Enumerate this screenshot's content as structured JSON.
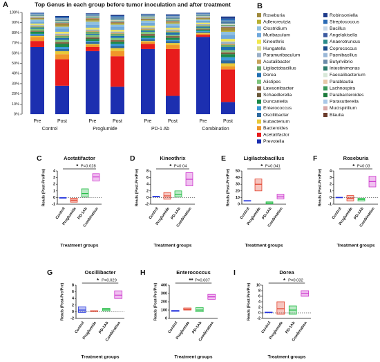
{
  "chart_data": [
    {
      "type": "bar",
      "panel_label": "A",
      "legend_panel_label": "B",
      "title": "Top Genus in each group before tumor inoculation and after treatment",
      "categories": [
        "Pre",
        "Post",
        "Pre",
        "Post",
        "Pre",
        "Post",
        "Pre",
        "Post"
      ],
      "groups": [
        "Control",
        "Proglumide",
        "PD-1 Ab",
        "Combination"
      ],
      "ylim": [
        0,
        100
      ],
      "yticks": [
        {
          "value": 0,
          "label": "0%"
        },
        {
          "value": 10,
          "label": "10%"
        },
        {
          "value": 20,
          "label": "20%"
        },
        {
          "value": 30,
          "label": "30%"
        },
        {
          "value": 40,
          "label": "40%"
        },
        {
          "value": 50,
          "label": "50%"
        },
        {
          "value": 60,
          "label": "60%"
        },
        {
          "value": 70,
          "label": "70%"
        },
        {
          "value": 80,
          "label": "80%"
        },
        {
          "value": 90,
          "label": "90%"
        },
        {
          "value": 100,
          "label": "100%"
        }
      ],
      "series": [
        {
          "name": "Roseburia",
          "color": "#a08a3c",
          "values": [
            1,
            2,
            2,
            1,
            1,
            1,
            1,
            3
          ]
        },
        {
          "name": "Adlercreutzia",
          "color": "#b8b030",
          "values": [
            0.5,
            1,
            1,
            1,
            0.5,
            1,
            0.5,
            1
          ]
        },
        {
          "name": "Clostridium",
          "color": "#8fc0e0",
          "values": [
            2,
            2,
            3,
            2,
            2,
            2,
            1,
            3
          ]
        },
        {
          "name": "Muribaculum",
          "color": "#6fa8dc",
          "values": [
            2,
            3,
            3,
            3,
            3,
            2,
            2,
            4
          ]
        },
        {
          "name": "Kineothrix",
          "color": "#f2e84b",
          "values": [
            1,
            1,
            1,
            1,
            1,
            1,
            1,
            2
          ]
        },
        {
          "name": "Hungatella",
          "color": "#d9d98c",
          "values": [
            0.5,
            1,
            1,
            1,
            1,
            1,
            0.5,
            1
          ]
        },
        {
          "name": "Paramuribaculum",
          "color": "#9ab0c8",
          "values": [
            1,
            1,
            1,
            1,
            1,
            1,
            1,
            2
          ]
        },
        {
          "name": "Acutalibacter",
          "color": "#c7a25a",
          "values": [
            0.5,
            1,
            1,
            1,
            1,
            1,
            0.5,
            1
          ]
        },
        {
          "name": "Ligilactobacillus",
          "color": "#6aa86a",
          "values": [
            1,
            2,
            2,
            2,
            1,
            1,
            1,
            2
          ]
        },
        {
          "name": "Dorea",
          "color": "#1f6fb2",
          "values": [
            1,
            2,
            1,
            2,
            1,
            2,
            1,
            3
          ]
        },
        {
          "name": "Alistipes",
          "color": "#7cc47c",
          "values": [
            2,
            2,
            2,
            2,
            2,
            1,
            1,
            2
          ]
        },
        {
          "name": "Lawsonibacter",
          "color": "#8a6a4a",
          "values": [
            0.5,
            1,
            1,
            1,
            1,
            1,
            0.5,
            1
          ]
        },
        {
          "name": "Schaedlerella",
          "color": "#6b5a3a",
          "values": [
            0.5,
            1,
            1,
            1,
            1,
            1,
            0.5,
            1
          ]
        },
        {
          "name": "Duncaniella",
          "color": "#1b8a4a",
          "values": [
            2,
            3,
            2,
            2,
            2,
            2,
            1,
            3
          ]
        },
        {
          "name": "Enterococcus",
          "color": "#3a9ad9",
          "values": [
            1,
            2,
            1,
            2,
            1,
            1,
            1,
            3
          ]
        },
        {
          "name": "Oscillibacter",
          "color": "#2e6aa0",
          "values": [
            1,
            2,
            2,
            2,
            2,
            2,
            1,
            3
          ]
        },
        {
          "name": "Eubacterium",
          "color": "#e8c93a",
          "values": [
            1,
            3,
            1,
            3,
            1,
            2,
            1,
            3
          ]
        },
        {
          "name": "Bacteroides",
          "color": "#f0962a",
          "values": [
            4,
            5,
            2,
            5,
            2,
            4,
            1,
            3
          ]
        },
        {
          "name": "Acetatifactor",
          "color": "#e81c1c",
          "values": [
            6,
            26,
            4,
            30,
            5,
            46,
            2,
            32
          ]
        },
        {
          "name": "Prevotella",
          "color": "#1c2fb0",
          "values": [
            66,
            28,
            62,
            27,
            64,
            18,
            76,
            12
          ]
        },
        {
          "name": "Robinsoniella",
          "color": "#1e3a8a",
          "values": [
            0.5,
            1,
            0.5,
            1,
            0.5,
            1,
            0.5,
            2
          ]
        },
        {
          "name": "Streptococcus",
          "color": "#2a6ab5",
          "values": [
            0.5,
            1,
            0.5,
            1,
            0.5,
            0.5,
            0.5,
            2
          ]
        },
        {
          "name": "Bacillus",
          "color": "#c8d8e8",
          "values": [
            0.3,
            0.4,
            0.3,
            0.4,
            0.3,
            0.4,
            0.3,
            0.5
          ]
        },
        {
          "name": "Angelakisella",
          "color": "#3c5aa0",
          "values": [
            0.3,
            0.4,
            0.3,
            0.4,
            0.3,
            0.4,
            0.3,
            0.5
          ]
        },
        {
          "name": "Anaerotruncus",
          "color": "#2a8a8a",
          "values": [
            0.3,
            0.4,
            0.3,
            0.4,
            0.3,
            0.4,
            0.3,
            0.5
          ]
        },
        {
          "name": "Coprococcus",
          "color": "#1a4a8a",
          "values": [
            0.3,
            0.4,
            0.3,
            0.4,
            0.3,
            0.4,
            0.3,
            0.5
          ]
        },
        {
          "name": "Paenibacillus",
          "color": "#9ab8d8",
          "values": [
            0.3,
            0.4,
            0.3,
            0.4,
            0.3,
            0.4,
            0.3,
            0.5
          ]
        },
        {
          "name": "Butyrivibrio",
          "color": "#6a8aa8",
          "values": [
            0.3,
            0.4,
            0.3,
            0.4,
            0.3,
            0.4,
            0.3,
            0.5
          ]
        },
        {
          "name": "Intestinimonas",
          "color": "#2a7a6a",
          "values": [
            0.3,
            0.4,
            0.3,
            0.4,
            0.3,
            0.4,
            0.3,
            0.5
          ]
        },
        {
          "name": "Faecalibacterium",
          "color": "#d8e8d8",
          "values": [
            0.3,
            0.4,
            0.3,
            0.4,
            0.3,
            0.4,
            0.3,
            0.5
          ]
        },
        {
          "name": "Parablautia",
          "color": "#e8c8a8",
          "values": [
            0.3,
            0.4,
            0.3,
            0.4,
            0.3,
            0.4,
            0.3,
            0.5
          ]
        },
        {
          "name": "Lachnospira",
          "color": "#3a9a5a",
          "values": [
            0.3,
            0.4,
            0.3,
            0.4,
            0.3,
            0.4,
            0.3,
            0.5
          ]
        },
        {
          "name": "Parabacteroides",
          "color": "#1a7a3a",
          "values": [
            0.3,
            0.4,
            0.3,
            0.4,
            0.3,
            0.4,
            0.3,
            0.5
          ]
        },
        {
          "name": "Parasutterella",
          "color": "#aac8e8",
          "values": [
            0.3,
            0.4,
            0.3,
            0.4,
            0.3,
            0.4,
            0.3,
            0.5
          ]
        },
        {
          "name": "Mucispirillum",
          "color": "#d8a8a8",
          "values": [
            0.3,
            0.4,
            0.3,
            0.4,
            0.3,
            0.4,
            0.3,
            0.5
          ]
        },
        {
          "name": "Blautia",
          "color": "#6a3a2a",
          "values": [
            0.3,
            0.4,
            0.3,
            0.4,
            0.3,
            0.4,
            0.3,
            0.5
          ]
        }
      ]
    },
    {
      "type": "box",
      "panel_label": "C",
      "title": "Acetatifactor",
      "y_label": "Reads (Post-Pre/Pre)",
      "x_label": "Treatment groups",
      "categories": [
        "Control",
        "Proglumide",
        "PD-1Ab",
        "Combination"
      ],
      "colors": [
        "#2233dd",
        "#e2402a",
        "#22bb44",
        "#cc33cc"
      ],
      "ylim": [
        -1,
        4
      ],
      "yticks": [
        -1,
        0,
        1,
        2,
        3,
        4
      ],
      "hline": 0,
      "sig": "*",
      "p_label": "P=0.028",
      "boxes": [
        {
          "low": -0.1,
          "median": -0.05,
          "high": 0
        },
        {
          "low": -0.7,
          "median": -0.4,
          "high": -0.1
        },
        {
          "low": 0.1,
          "median": 0.6,
          "high": 1.3
        },
        {
          "low": 2.5,
          "median": 3.1,
          "high": 3.6
        }
      ]
    },
    {
      "type": "box",
      "panel_label": "D",
      "title": "Kineothrix",
      "y_label": "Reads (Post-Pre/Pre)",
      "x_label": "Treatment groups",
      "categories": [
        "Control",
        "Proglumide",
        "PD-1Ab",
        "Combination"
      ],
      "colors": [
        "#2233dd",
        "#e2402a",
        "#22bb44",
        "#cc33cc"
      ],
      "ylim": [
        -2,
        8
      ],
      "yticks": [
        -2,
        0,
        2,
        4,
        6,
        8
      ],
      "hline": 0,
      "sig": "*",
      "p_label": "P=0.04",
      "boxes": [
        {
          "low": 0.2,
          "median": 0.3,
          "high": 0.4
        },
        {
          "low": -0.5,
          "median": 0.5,
          "high": 1.5
        },
        {
          "low": 0.2,
          "median": 1,
          "high": 2
        },
        {
          "low": 3.5,
          "median": 5.5,
          "high": 7.5
        }
      ]
    },
    {
      "type": "box",
      "panel_label": "E",
      "title": "Ligilactobacillus",
      "y_label": "Reads (Post-Pre/Pre)",
      "x_label": "Treatment groups",
      "categories": [
        "Control",
        "Proglumide",
        "PD-1Ab",
        "Combination"
      ],
      "colors": [
        "#2233dd",
        "#e2402a",
        "#22bb44",
        "#cc33cc"
      ],
      "ylim": [
        0,
        50
      ],
      "yticks": [
        0,
        10,
        20,
        30,
        40,
        50
      ],
      "sig": "*",
      "p_label": "P=0.041",
      "boxes": [
        {
          "low": 5,
          "median": 5,
          "high": 5.5
        },
        {
          "low": 20,
          "median": 30,
          "high": 38
        },
        {
          "low": 0.5,
          "median": 2,
          "high": 3.5
        },
        {
          "low": 8,
          "median": 11,
          "high": 15
        }
      ]
    },
    {
      "type": "box",
      "panel_label": "F",
      "title": "Roseburia",
      "y_label": "Reads (Post-Pre/Pre)",
      "x_label": "Treatment groups",
      "categories": [
        "Control",
        "Proglumide",
        "PD-1Ab",
        "Combination"
      ],
      "colors": [
        "#2233dd",
        "#e2402a",
        "#22bb44",
        "#cc33cc"
      ],
      "ylim": [
        -1,
        4
      ],
      "yticks": [
        -1,
        0,
        1,
        2,
        3,
        4
      ],
      "hline": 0,
      "sig": "*",
      "p_label": "P=0.03",
      "boxes": [
        {
          "low": -0.05,
          "median": 0,
          "high": 0.05
        },
        {
          "low": -0.5,
          "median": -0.1,
          "high": 0.3
        },
        {
          "low": -0.5,
          "median": -0.3,
          "high": -0.1
        },
        {
          "low": 1.6,
          "median": 2.4,
          "high": 3.2
        }
      ]
    },
    {
      "type": "box",
      "panel_label": "G",
      "title": "Oscillibacter",
      "y_label": "Reads (Post-Pre/Pre)",
      "x_label": "Treatment groups",
      "categories": [
        "Control",
        "Proglumide",
        "PD-1Ab",
        "Combination"
      ],
      "colors": [
        "#2233dd",
        "#e2402a",
        "#22bb44",
        "#cc33cc"
      ],
      "ylim": [
        -2,
        8
      ],
      "yticks": [
        -2,
        0,
        2,
        4,
        6,
        8
      ],
      "hline": 0,
      "sig": "*",
      "p_label": "P=0.029",
      "boxes": [
        {
          "low": -0.2,
          "median": 0.5,
          "high": 1.5
        },
        {
          "low": 0.1,
          "median": 0.2,
          "high": 0.3
        },
        {
          "low": 0.3,
          "median": 0.7,
          "high": 1
        },
        {
          "low": 4,
          "median": 5,
          "high": 6.3
        }
      ]
    },
    {
      "type": "box",
      "panel_label": "H",
      "title": "Enterococcus",
      "y_label": "Reads (Post-Pre/Pre)",
      "x_label": "Treatment groups",
      "categories": [
        "Control",
        "Proglumide",
        "PD-1Ab",
        "Combination"
      ],
      "colors": [
        "#2233dd",
        "#e2402a",
        "#22bb44",
        "#cc33cc"
      ],
      "ylim": [
        0,
        400
      ],
      "yticks": [
        0,
        100,
        200,
        300,
        400
      ],
      "sig": "**",
      "p_label": "P=0.007",
      "boxes": [
        {
          "low": 85,
          "median": 90,
          "high": 95
        },
        {
          "low": 100,
          "median": 110,
          "high": 125
        },
        {
          "low": 80,
          "median": 100,
          "high": 130
        },
        {
          "low": 230,
          "median": 260,
          "high": 290
        }
      ]
    },
    {
      "type": "box",
      "panel_label": "I",
      "title": "Dorea",
      "y_label": "Reads (Post-Pre/Pre)",
      "x_label": "Treatment groups",
      "categories": [
        "Control",
        "Proglumide",
        "PD-1Ab",
        "Combination"
      ],
      "colors": [
        "#2233dd",
        "#e2402a",
        "#22bb44",
        "#cc33cc"
      ],
      "ylim": [
        -2,
        10
      ],
      "yticks": [
        -2,
        0,
        2,
        4,
        6,
        8,
        10
      ],
      "hline": 0,
      "sig": "*",
      "p_label": "P=0.032",
      "boxes": [
        {
          "low": 0.15,
          "median": 0.2,
          "high": 0.25
        },
        {
          "low": -0.5,
          "median": 1.5,
          "high": 4
        },
        {
          "low": -0.5,
          "median": 1,
          "high": 2.5
        },
        {
          "low": 6,
          "median": 7,
          "high": 8
        }
      ]
    }
  ]
}
